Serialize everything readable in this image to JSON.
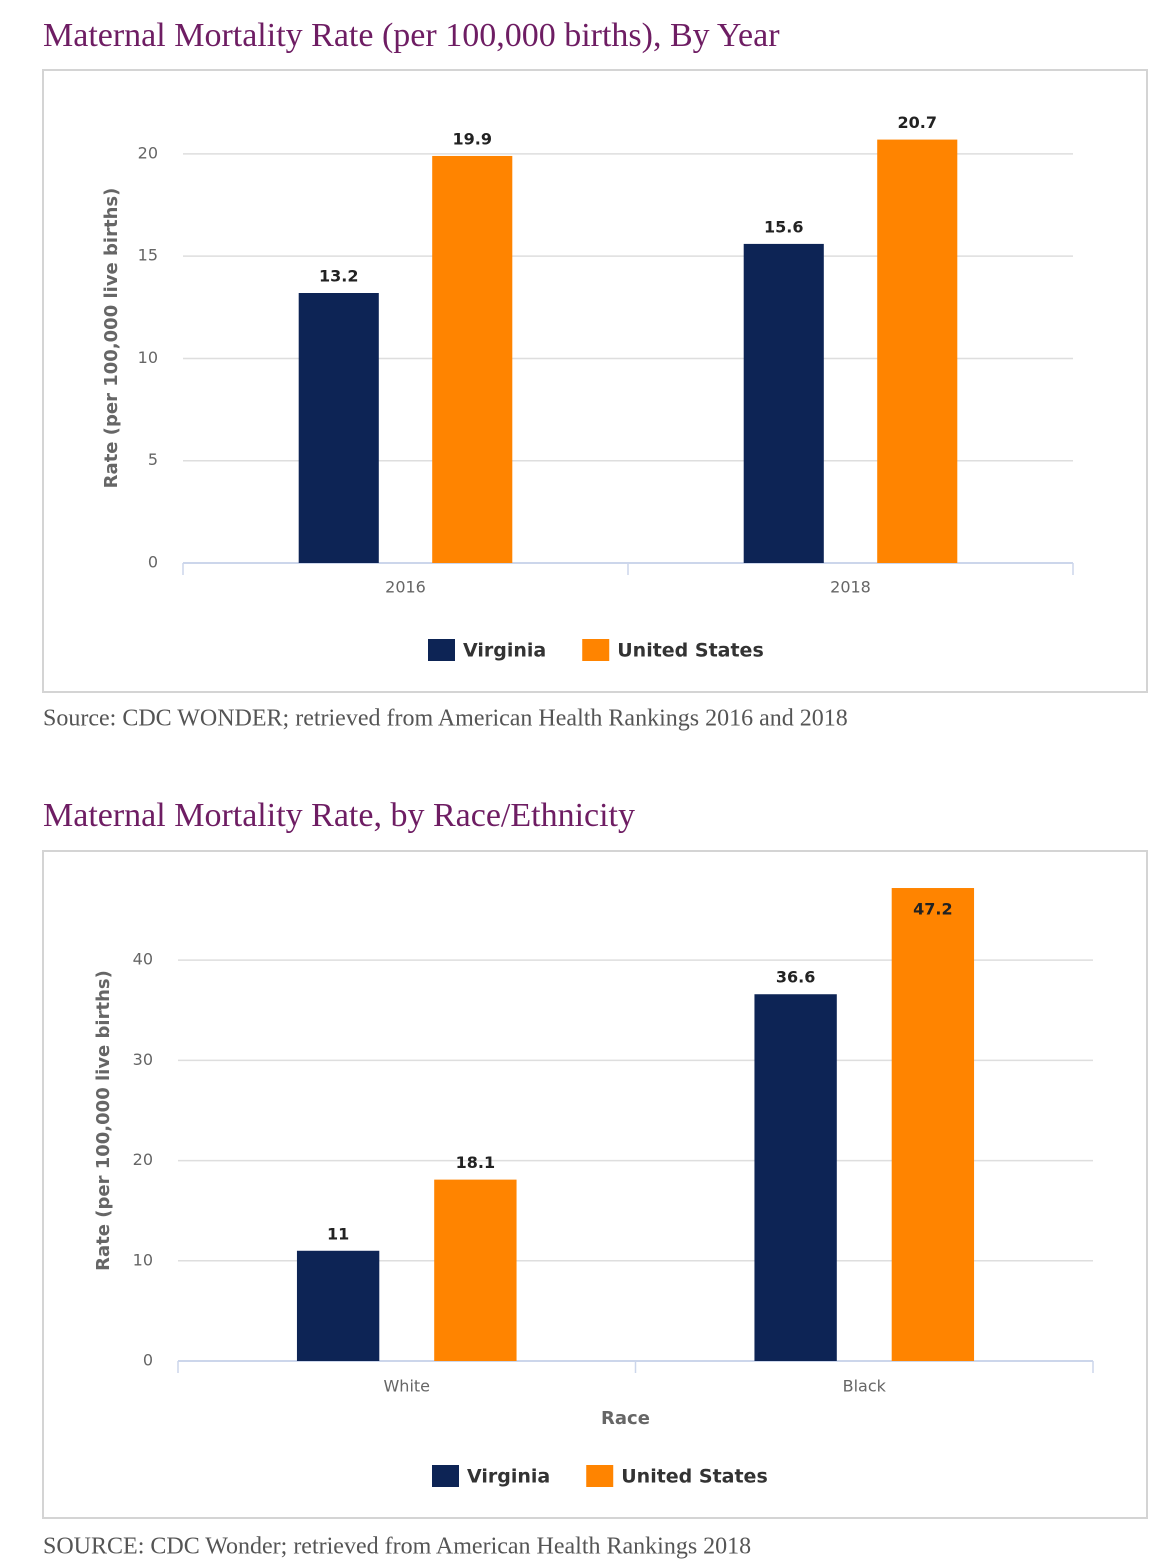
{
  "chart_data": [
    {
      "type": "bar",
      "title": "Maternal Mortality Rate (per 100,000 births), By Year",
      "y_label": "Rate (per 100,000 live births)",
      "categories": [
        "2016",
        "2018"
      ],
      "series": [
        {
          "name": "Virginia",
          "color": "#0d2455",
          "values": [
            13.2,
            15.6
          ]
        },
        {
          "name": "United States",
          "color": "#ff8400",
          "values": [
            19.9,
            20.7
          ]
        }
      ],
      "ylim": [
        0,
        22
      ],
      "yticks": [
        0,
        5,
        10,
        15,
        20
      ],
      "grid": true,
      "source": "Source: CDC WONDER; retrieved from American Health Rankings 2016 and 2018"
    },
    {
      "type": "bar",
      "title": "Maternal Mortality Rate, by Race/Ethnicity",
      "y_label": "Rate (per 100,000 live births)",
      "x_label": "Race",
      "categories": [
        "White",
        "Black"
      ],
      "series": [
        {
          "name": "Virginia",
          "color": "#0d2455",
          "values": [
            11,
            36.6
          ]
        },
        {
          "name": "United States",
          "color": "#ff8400",
          "values": [
            18.1,
            47.2
          ]
        }
      ],
      "ylim": [
        0,
        48
      ],
      "yticks": [
        0,
        10,
        20,
        30,
        40
      ],
      "grid": true,
      "source": "SOURCE: CDC Wonder; retrieved from American Health Rankings 2018"
    }
  ]
}
